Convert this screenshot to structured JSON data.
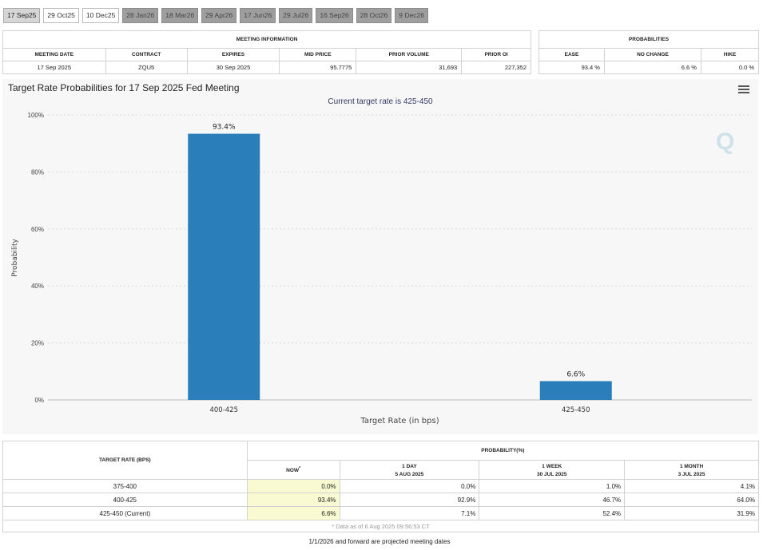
{
  "tabs": [
    {
      "label": "17 Sep25",
      "style": "active"
    },
    {
      "label": "29 Oct25",
      "style": "light"
    },
    {
      "label": "10 Dec25",
      "style": "light"
    },
    {
      "label": "28 Jan26",
      "style": "dark"
    },
    {
      "label": "18 Mar26",
      "style": "dark"
    },
    {
      "label": "29 Apr26",
      "style": "dark"
    },
    {
      "label": "17 Jun26",
      "style": "dark"
    },
    {
      "label": "29 Jul26",
      "style": "dark"
    },
    {
      "label": "16 Sep26",
      "style": "dark"
    },
    {
      "label": "28 Oct26",
      "style": "dark"
    },
    {
      "label": "9 Dec26",
      "style": "dark"
    }
  ],
  "meeting_info": {
    "caption": "MEETING INFORMATION",
    "headers": [
      "MEETING DATE",
      "CONTRACT",
      "EXPIRES",
      "MID PRICE",
      "PRIOR VOLUME",
      "PRIOR OI"
    ],
    "values": [
      "17 Sep 2025",
      "ZQU5",
      "30 Sep 2025",
      "95.7775",
      "31,693",
      "227,352"
    ]
  },
  "probabilities": {
    "caption": "PROBABILITIES",
    "headers": [
      "EASE",
      "NO CHANGE",
      "HIKE"
    ],
    "values": [
      "93.4 %",
      "6.6 %",
      "0.0 %"
    ]
  },
  "chart": {
    "title": "Target Rate Probabilities for 17 Sep 2025 Fed Meeting",
    "subtitle": "Current target rate is 425-450",
    "logo": "Q"
  },
  "chart_data": {
    "type": "bar",
    "title": "Target Rate Probabilities for 17 Sep 2025 Fed Meeting",
    "subtitle": "Current target rate is 425-450",
    "categories": [
      "400-425",
      "425-450"
    ],
    "values": [
      93.4,
      6.6
    ],
    "data_labels": [
      "93.4%",
      "6.6%"
    ],
    "xlabel": "Target Rate (in bps)",
    "ylabel": "Probability",
    "ylim": [
      0,
      100
    ],
    "yticks": [
      "0%",
      "20%",
      "40%",
      "60%",
      "80%",
      "100%"
    ],
    "grid": true,
    "bar_color": "#2a7fba"
  },
  "prob_table": {
    "row_header": "TARGET RATE (BPS)",
    "group_header": "PROBABILITY(%)",
    "columns": [
      {
        "label": "NOW",
        "sub": "",
        "mark": "*"
      },
      {
        "label": "1 DAY",
        "sub": "5 AUG 2025",
        "mark": ""
      },
      {
        "label": "1 WEEK",
        "sub": "30 JUL 2025",
        "mark": ""
      },
      {
        "label": "1 MONTH",
        "sub": "3 JUL 2025",
        "mark": ""
      }
    ],
    "rows": [
      {
        "rate": "375-400",
        "vals": [
          "0.0%",
          "0.0%",
          "1.0%",
          "4.1%"
        ]
      },
      {
        "rate": "400-425",
        "vals": [
          "93.4%",
          "92.9%",
          "46.7%",
          "64.0%"
        ]
      },
      {
        "rate": "425-450 (Current)",
        "vals": [
          "6.6%",
          "7.1%",
          "52.4%",
          "31.9%"
        ]
      }
    ],
    "data_note": "* Data as of 6 Aug 2025 09:56:53 CT"
  },
  "footnote": "1/1/2026 and forward are projected meeting dates"
}
